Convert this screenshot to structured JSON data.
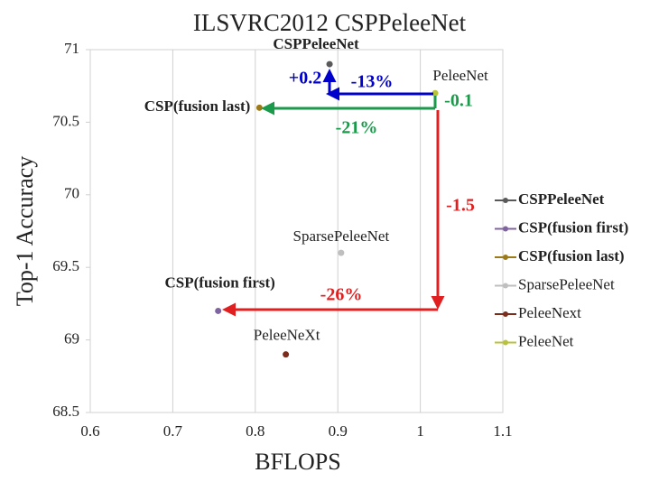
{
  "chart_data": {
    "type": "scatter",
    "title": "ILSVRC2012 CSPPeleeNet",
    "x_label": "BFLOPS",
    "y_label": "Top-1 Accuracy",
    "xlim": [
      0.6,
      1.1
    ],
    "xticks": [
      0.6,
      0.7,
      0.8,
      0.9,
      1,
      1.1
    ],
    "ylim": [
      68.5,
      71
    ],
    "yticks": [
      68.5,
      69,
      69.5,
      70,
      70.5,
      71
    ],
    "grid": true,
    "legend": "right",
    "series": [
      {
        "name": "CSPPeleeNet",
        "color": "#595959",
        "x": [
          0.89
        ],
        "values": [
          70.9
        ],
        "labels": [
          "CSPPeleeNet"
        ]
      },
      {
        "name": "CSP(fusion first)",
        "color": "#8064a2",
        "x": [
          0.755
        ],
        "values": [
          69.2
        ],
        "labels": [
          "CSP(fusion first)"
        ]
      },
      {
        "name": "CSP(fusion last)",
        "color": "#9c7a1a",
        "x": [
          0.805
        ],
        "values": [
          70.6
        ],
        "labels": [
          "CSP(fusion last)"
        ]
      },
      {
        "name": "SparsePeleeNet",
        "color": "#bfbfbf",
        "x": [
          0.904
        ],
        "values": [
          69.6
        ],
        "labels": [
          "SparsePeleeNet"
        ]
      },
      {
        "name": "PeleeNext",
        "color": "#7b2c1a",
        "x": [
          0.837
        ],
        "values": [
          68.9
        ],
        "labels": [
          "PeleeNeXt"
        ]
      },
      {
        "name": "PeleeNet",
        "color": "#b8c23a",
        "x": [
          1.018
        ],
        "values": [
          70.7
        ],
        "labels": [
          "PeleeNet"
        ]
      }
    ],
    "annotations": [
      {
        "text": "+0.2",
        "color": "#0000cc"
      },
      {
        "text": "-13%",
        "color": "#0000cc"
      },
      {
        "text": "-0.1",
        "color": "#1a9a4a"
      },
      {
        "text": "-21%",
        "color": "#1a9a4a"
      },
      {
        "text": "-1.5",
        "color": "#e02020"
      },
      {
        "text": "-26%",
        "color": "#e02020"
      }
    ]
  }
}
